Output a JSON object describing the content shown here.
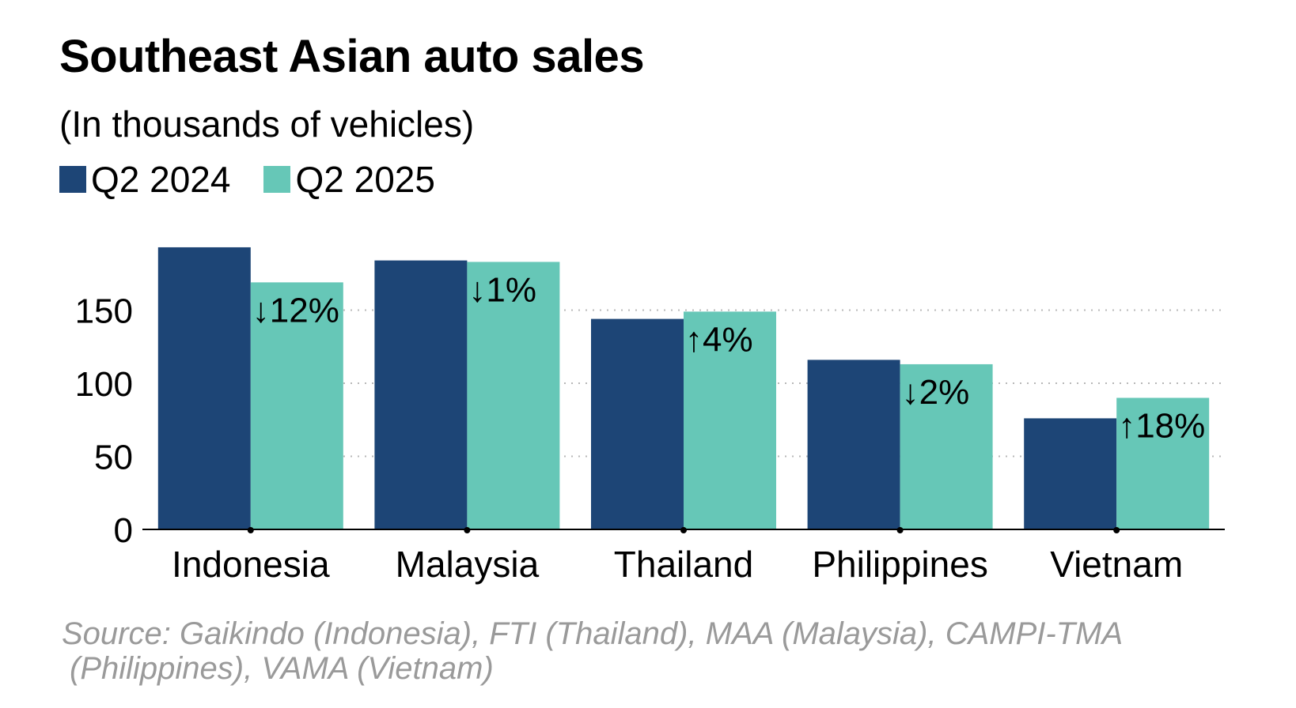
{
  "title": "Southeast Asian auto sales",
  "subtitle": "(In thousands of vehicles)",
  "source": {
    "line1": "Source: Gaikindo (Indonesia), FTI (Thailand), MAA (Malaysia), CAMPI-TMA",
    "line2": "(Philippines), VAMA (Vietnam)"
  },
  "colors": {
    "q2_2024": "#1d4576",
    "q2_2025": "#66c7b7",
    "grid": "#b8b8b8",
    "axis": "#000000"
  },
  "chart_data": {
    "type": "bar",
    "title": "Southeast Asian auto sales",
    "subtitle": "(In thousands of vehicles)",
    "categories": [
      "Indonesia",
      "Malaysia",
      "Thailand",
      "Philippines",
      "Vietnam"
    ],
    "series": [
      {
        "name": "Q2 2024",
        "color": "#1d4576",
        "values": [
          193,
          184,
          144,
          116,
          76
        ]
      },
      {
        "name": "Q2 2025",
        "color": "#66c7b7",
        "values": [
          169,
          183,
          149,
          113,
          90
        ]
      }
    ],
    "annotations": [
      "↓12%",
      "↓1%",
      "↑4%",
      "↓2%",
      "↑18%"
    ],
    "yticks": [
      "0",
      "50",
      "100",
      "150"
    ],
    "ylim": [
      0,
      200
    ],
    "grid": true,
    "grid_style": "dotted",
    "legend_position": "top-left"
  }
}
